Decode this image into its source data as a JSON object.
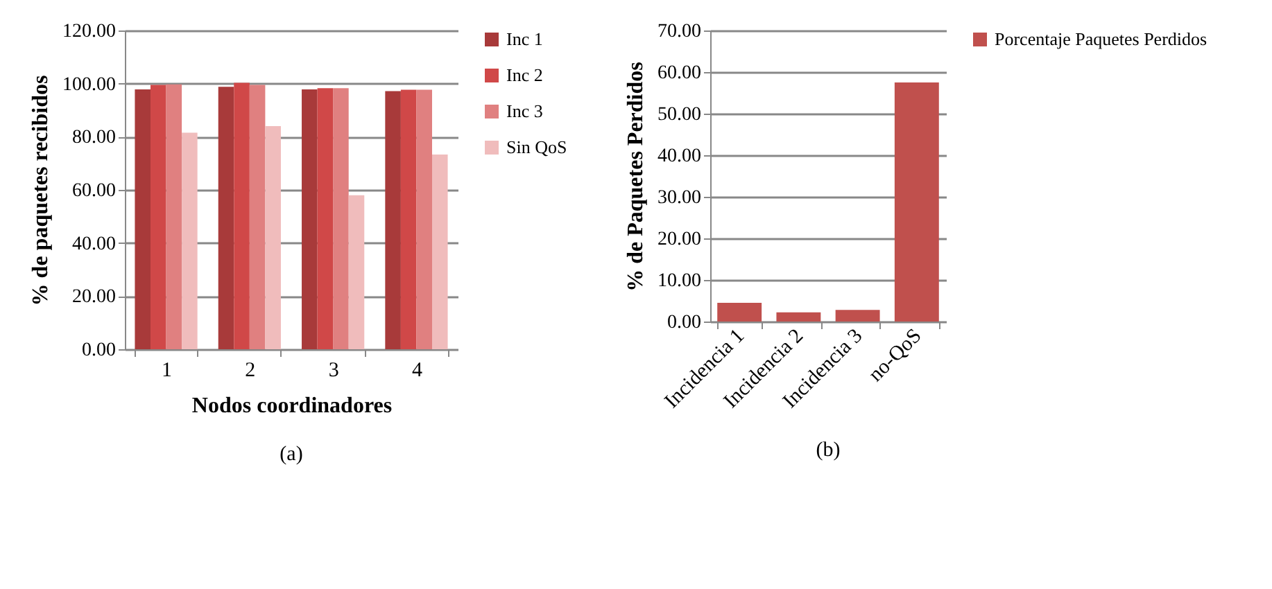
{
  "chart_data": [
    {
      "type": "bar",
      "categories": [
        "1",
        "2",
        "3",
        "4"
      ],
      "xlabel": "Nodos coordinadores",
      "ylabel": "% de paquetes recibidos",
      "ylim": [
        0,
        120
      ],
      "yticks": [
        {
          "value": 0,
          "label": "0.00"
        },
        {
          "value": 20,
          "label": "20.00"
        },
        {
          "value": 40,
          "label": "40.00"
        },
        {
          "value": 60,
          "label": "60.00"
        },
        {
          "value": 80,
          "label": "80.00"
        },
        {
          "value": 100,
          "label": "100.00"
        },
        {
          "value": 120,
          "label": "120.00"
        }
      ],
      "grid": "y",
      "legend": "right",
      "annotations": [
        "(a)"
      ],
      "series": [
        {
          "name": "Inc 1",
          "color": "#a83a3a",
          "values": [
            97.8,
            98.8,
            97.8,
            97.2
          ]
        },
        {
          "name": "Inc 2",
          "color": "#d04848",
          "values": [
            99.5,
            100.3,
            98.3,
            97.7
          ]
        },
        {
          "name": "Inc 3",
          "color": "#e08080",
          "values": [
            99.7,
            99.5,
            98.3,
            97.7
          ]
        },
        {
          "name": "Sin QoS",
          "color": "#f0bcbc",
          "values": [
            81.5,
            84.0,
            58.0,
            73.3
          ]
        }
      ]
    },
    {
      "type": "bar",
      "categories": [
        "Incidencia 1",
        "Incidencia 2",
        "Incidencia 3",
        "no-QoS"
      ],
      "ylabel": "% de Paquetes Perdidos",
      "ylim": [
        0,
        70
      ],
      "yticks": [
        {
          "value": 0,
          "label": "0.00"
        },
        {
          "value": 10,
          "label": "10.00"
        },
        {
          "value": 20,
          "label": "20.00"
        },
        {
          "value": 30,
          "label": "30.00"
        },
        {
          "value": 40,
          "label": "40.00"
        },
        {
          "value": 50,
          "label": "50.00"
        },
        {
          "value": 60,
          "label": "60.00"
        },
        {
          "value": 70,
          "label": "70.00"
        }
      ],
      "grid": "y",
      "legend": "right",
      "annotations": [
        "(b)"
      ],
      "series": [
        {
          "name": "Porcentaje Paquetes Perdidos",
          "color": "#c0504d",
          "values": [
            4.5,
            2.2,
            2.8,
            57.5
          ]
        }
      ]
    }
  ]
}
